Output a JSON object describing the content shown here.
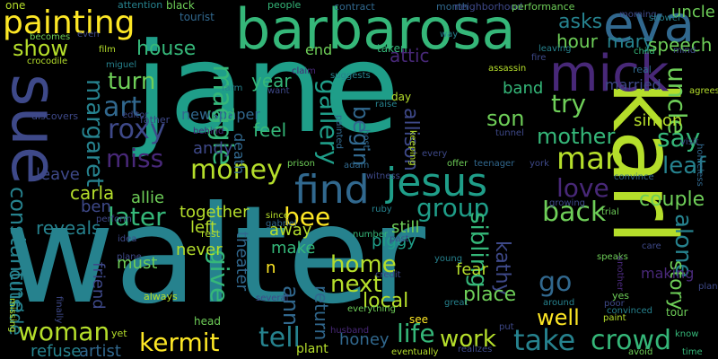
{
  "colors": {
    "background": "#000000",
    "palette": [
      "#440154",
      "#482878",
      "#3e4989",
      "#31688e",
      "#26828e",
      "#1f9e89",
      "#35b779",
      "#6ece58",
      "#b5de2b",
      "#fde725"
    ]
  },
  "words": [
    {
      "text": "jane",
      "color": "#1f9e89"
    },
    {
      "text": "walter",
      "color": "#26828e"
    },
    {
      "text": "karl",
      "color": "#b5de2b"
    },
    {
      "text": "barbarosa",
      "color": "#35b779"
    },
    {
      "text": "sue",
      "color": "#3e4989"
    },
    {
      "text": "mick",
      "color": "#482878"
    },
    {
      "text": "eva",
      "color": "#31688e"
    },
    {
      "text": "jesus",
      "color": "#1f9e89"
    },
    {
      "text": "painting",
      "color": "#fde725"
    },
    {
      "text": "find",
      "color": "#31688e"
    },
    {
      "text": "money",
      "color": "#b5de2b"
    },
    {
      "text": "man",
      "color": "#b5de2b"
    },
    {
      "text": "kermit",
      "color": "#fde725"
    },
    {
      "text": "tell",
      "color": "#26828e"
    },
    {
      "text": "take",
      "color": "#26828e"
    },
    {
      "text": "crowd",
      "color": "#35b779"
    },
    {
      "text": "woman",
      "color": "#b5de2b"
    },
    {
      "text": "life",
      "color": "#35b779"
    },
    {
      "text": "work",
      "color": "#b5de2b"
    },
    {
      "text": "constantine",
      "color": "#26828e"
    },
    {
      "text": "margaret",
      "color": "#26828e"
    },
    {
      "text": "maggie",
      "color": "#35b779"
    },
    {
      "text": "art",
      "color": "#31688e"
    },
    {
      "text": "roxy",
      "color": "#3e4989"
    },
    {
      "text": "miss",
      "color": "#482878"
    },
    {
      "text": "later",
      "color": "#35b779"
    },
    {
      "text": "give",
      "color": "#35b779"
    },
    {
      "text": "gallery",
      "color": "#1f9e89"
    },
    {
      "text": "ann",
      "color": "#31688e"
    },
    {
      "text": "begin",
      "color": "#31688e"
    },
    {
      "text": "allison",
      "color": "#3e4989"
    },
    {
      "text": "group",
      "color": "#1f9e89"
    },
    {
      "text": "back",
      "color": "#6ece58"
    },
    {
      "text": "go",
      "color": "#31688e"
    },
    {
      "text": "next",
      "color": "#b5de2b"
    },
    {
      "text": "home",
      "color": "#b5de2b"
    },
    {
      "text": "sibling",
      "color": "#35b779"
    },
    {
      "text": "mother",
      "color": "#35b779"
    },
    {
      "text": "son",
      "color": "#6ece58"
    },
    {
      "text": "try",
      "color": "#6ece58"
    },
    {
      "text": "say",
      "color": "#35b779"
    },
    {
      "text": "uncle",
      "color": "#6ece58"
    },
    {
      "text": "leaf",
      "color": "#26828e"
    },
    {
      "text": "love",
      "color": "#482878"
    },
    {
      "text": "couple",
      "color": "#6ece58"
    },
    {
      "text": "alone",
      "color": "#26828e"
    },
    {
      "text": "story",
      "color": "#6ece58"
    },
    {
      "text": "kathy",
      "color": "#3e4989"
    },
    {
      "text": "well",
      "color": "#fde725"
    },
    {
      "text": "bee",
      "color": "#fde725"
    },
    {
      "text": "asks",
      "color": "#26828e"
    },
    {
      "text": "show",
      "color": "#b5de2b"
    },
    {
      "text": "turn",
      "color": "#6ece58"
    },
    {
      "text": "house",
      "color": "#35b779"
    },
    {
      "text": "hour",
      "color": "#6ece58"
    },
    {
      "text": "mary",
      "color": "#26828e"
    },
    {
      "text": "speech",
      "color": "#6ece58"
    },
    {
      "text": "reveals",
      "color": "#26828e"
    },
    {
      "text": "artist",
      "color": "#31688e"
    },
    {
      "text": "refuse",
      "color": "#26828e"
    },
    {
      "text": "outside",
      "color": "#26828e"
    },
    {
      "text": "friend",
      "color": "#3e4989"
    },
    {
      "text": "must",
      "color": "#6ece58"
    },
    {
      "text": "honey",
      "color": "#31688e"
    },
    {
      "text": "return",
      "color": "#31688e"
    },
    {
      "text": "place",
      "color": "#6ece58"
    },
    {
      "text": "local",
      "color": "#b5de2b"
    },
    {
      "text": "theater",
      "color": "#31688e"
    },
    {
      "text": "make",
      "color": "#35b779"
    },
    {
      "text": "away",
      "color": "#b5de2b"
    },
    {
      "text": "left",
      "color": "#b5de2b"
    },
    {
      "text": "n",
      "color": "#fde725"
    },
    {
      "text": "simon",
      "color": "#b5de2b"
    },
    {
      "text": "together",
      "color": "#b5de2b"
    },
    {
      "text": "andy",
      "color": "#3e4989"
    },
    {
      "text": "carla",
      "color": "#b5de2b"
    },
    {
      "text": "leave",
      "color": "#3e4989"
    },
    {
      "text": "ben",
      "color": "#3e4989"
    },
    {
      "text": "allie",
      "color": "#6ece58"
    },
    {
      "text": "never",
      "color": "#b5de2b"
    },
    {
      "text": "feel",
      "color": "#35b779"
    },
    {
      "text": "year",
      "color": "#35b779"
    },
    {
      "text": "newspaper",
      "color": "#31688e"
    },
    {
      "text": "old",
      "color": "#35b779"
    },
    {
      "text": "band",
      "color": "#35b779"
    },
    {
      "text": "attic",
      "color": "#482878"
    },
    {
      "text": "end",
      "color": "#6ece58"
    },
    {
      "text": "married",
      "color": "#3e4989"
    },
    {
      "text": "piggy",
      "color": "#1f9e89"
    },
    {
      "text": "still",
      "color": "#6ece58"
    },
    {
      "text": "fear",
      "color": "#b5de2b"
    },
    {
      "text": "death",
      "color": "#31688e"
    },
    {
      "text": "uncle",
      "color": "#6ece58"
    },
    {
      "text": "one",
      "color": "#b5de2b"
    },
    {
      "text": "attention",
      "color": "#26828e"
    },
    {
      "text": "black",
      "color": "#6ece58"
    },
    {
      "text": "tourist",
      "color": "#31688e"
    },
    {
      "text": "people",
      "color": "#35b779"
    },
    {
      "text": "contract",
      "color": "#31688e"
    },
    {
      "text": "month",
      "color": "#31688e"
    },
    {
      "text": "neighborhood",
      "color": "#3e4989"
    },
    {
      "text": "performance",
      "color": "#6ece58"
    },
    {
      "text": "morning",
      "color": "#3e4989"
    },
    {
      "text": "becomes",
      "color": "#6ece58"
    },
    {
      "text": "even",
      "color": "#3e4989"
    },
    {
      "text": "crocodile",
      "color": "#b5de2b"
    },
    {
      "text": "film",
      "color": "#b5de2b"
    },
    {
      "text": "miguel",
      "color": "#26828e"
    },
    {
      "text": "editor",
      "color": "#3e4989"
    },
    {
      "text": "discovers",
      "color": "#3e4989"
    },
    {
      "text": "father",
      "color": "#3e4989"
    },
    {
      "text": "behind",
      "color": "#482878"
    },
    {
      "text": "farm",
      "color": "#26828e"
    },
    {
      "text": "want",
      "color": "#3e4989"
    },
    {
      "text": "claim",
      "color": "#482878"
    },
    {
      "text": "suggests",
      "color": "#26828e"
    },
    {
      "text": "taken",
      "color": "#35b779"
    },
    {
      "text": "assassin",
      "color": "#b5de2b"
    },
    {
      "text": "leaving",
      "color": "#26828e"
    },
    {
      "text": "fire",
      "color": "#3e4989"
    },
    {
      "text": "way",
      "color": "#26828e"
    },
    {
      "text": "shower",
      "color": "#26828e"
    },
    {
      "text": "child",
      "color": "#35b779"
    },
    {
      "text": "mind",
      "color": "#3e4989"
    },
    {
      "text": "real",
      "color": "#31688e"
    },
    {
      "text": "agrees",
      "color": "#b5de2b"
    },
    {
      "text": "visit",
      "color": "#3e4989"
    },
    {
      "text": "homeless",
      "color": "#31688e"
    },
    {
      "text": "day",
      "color": "#b5de2b"
    },
    {
      "text": "raise",
      "color": "#26828e"
    },
    {
      "text": "painted",
      "color": "#31688e"
    },
    {
      "text": "host",
      "color": "#31688e"
    },
    {
      "text": "keeping",
      "color": "#b5de2b"
    },
    {
      "text": "tunnel",
      "color": "#3e4989"
    },
    {
      "text": "prison",
      "color": "#6ece58"
    },
    {
      "text": "adam",
      "color": "#31688e"
    },
    {
      "text": "witness",
      "color": "#3e4989"
    },
    {
      "text": "every",
      "color": "#3e4989"
    },
    {
      "text": "offer",
      "color": "#6ece58"
    },
    {
      "text": "teenager",
      "color": "#31688e"
    },
    {
      "text": "york",
      "color": "#3e4989"
    },
    {
      "text": "convince",
      "color": "#31688e"
    },
    {
      "text": "since",
      "color": "#b5de2b"
    },
    {
      "text": "gabriel",
      "color": "#31688e"
    },
    {
      "text": "ruby",
      "color": "#26828e"
    },
    {
      "text": "growing",
      "color": "#3e4989"
    },
    {
      "text": "trial",
      "color": "#6ece58"
    },
    {
      "text": "perform",
      "color": "#3e4989"
    },
    {
      "text": "idea",
      "color": "#3e4989"
    },
    {
      "text": "plane",
      "color": "#3e4989"
    },
    {
      "text": "rest",
      "color": "#b5de2b"
    },
    {
      "text": "number",
      "color": "#35b779"
    },
    {
      "text": "past",
      "color": "#3e4989"
    },
    {
      "text": "young",
      "color": "#26828e"
    },
    {
      "text": "credit",
      "color": "#3e4989"
    },
    {
      "text": "speaks",
      "color": "#6ece58"
    },
    {
      "text": "another",
      "color": "#482878"
    },
    {
      "text": "care",
      "color": "#3e4989"
    },
    {
      "text": "making",
      "color": "#482878"
    },
    {
      "text": "yes",
      "color": "#6ece58"
    },
    {
      "text": "poor",
      "color": "#3e4989"
    },
    {
      "text": "convinced",
      "color": "#26828e"
    },
    {
      "text": "tour",
      "color": "#6ece58"
    },
    {
      "text": "plan",
      "color": "#3e4989"
    },
    {
      "text": "around",
      "color": "#26828e"
    },
    {
      "text": "great",
      "color": "#26828e"
    },
    {
      "text": "everything",
      "color": "#6ece58"
    },
    {
      "text": "several",
      "color": "#3e4989"
    },
    {
      "text": "always",
      "color": "#b5de2b"
    },
    {
      "text": "head",
      "color": "#6ece58"
    },
    {
      "text": "yet",
      "color": "#b5de2b"
    },
    {
      "text": "missing",
      "color": "#b5de2b"
    },
    {
      "text": "finally",
      "color": "#3e4989"
    },
    {
      "text": "husband",
      "color": "#482878"
    },
    {
      "text": "plant",
      "color": "#b5de2b"
    },
    {
      "text": "see",
      "color": "#fde725"
    },
    {
      "text": "eventually",
      "color": "#b5de2b"
    },
    {
      "text": "realizes",
      "color": "#3e4989"
    },
    {
      "text": "put",
      "color": "#3e4989"
    },
    {
      "text": "paint",
      "color": "#b5de2b"
    },
    {
      "text": "know",
      "color": "#35b779"
    },
    {
      "text": "avoid",
      "color": "#6ece58"
    },
    {
      "text": "time",
      "color": "#35b779"
    }
  ]
}
